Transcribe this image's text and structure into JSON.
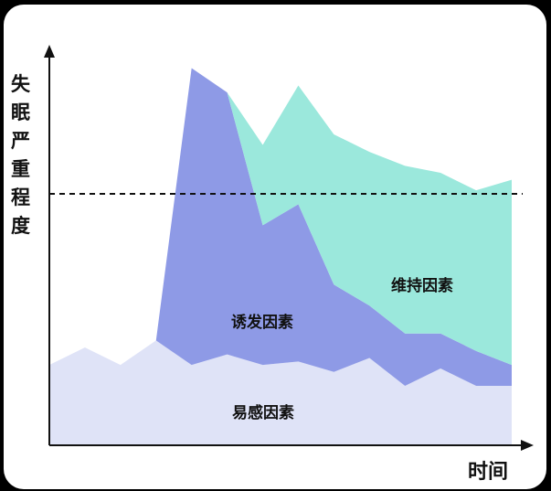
{
  "chart_data": {
    "type": "area",
    "title": "",
    "ylabel": "失眠严重程度",
    "xlabel": "时间",
    "threshold_line": "dashed",
    "x": [
      0,
      1,
      2,
      3,
      4,
      5,
      6,
      7,
      8,
      9,
      10,
      11,
      12,
      13
    ],
    "ylim": [
      0,
      100
    ],
    "series": [
      {
        "name": "易感因素",
        "color": "#dfe3f7",
        "values": [
          23,
          28,
          23,
          30,
          23,
          26,
          23,
          24,
          21,
          25,
          17,
          22,
          17,
          17
        ]
      },
      {
        "name": "诱发因素",
        "color": "#8e9ae6",
        "values": [
          0,
          0,
          0,
          0,
          85,
          75,
          40,
          45,
          25,
          15,
          15,
          10,
          10,
          6
        ]
      },
      {
        "name": "维持因素",
        "color": "#9be8dc",
        "values": [
          0,
          0,
          0,
          0,
          0,
          0,
          23,
          34,
          43,
          44,
          48,
          46,
          46,
          53
        ]
      }
    ],
    "threshold": 72,
    "area_labels": {
      "susceptible": "易感因素",
      "trigger": "诱发因素",
      "maintain": "维持因素"
    }
  }
}
